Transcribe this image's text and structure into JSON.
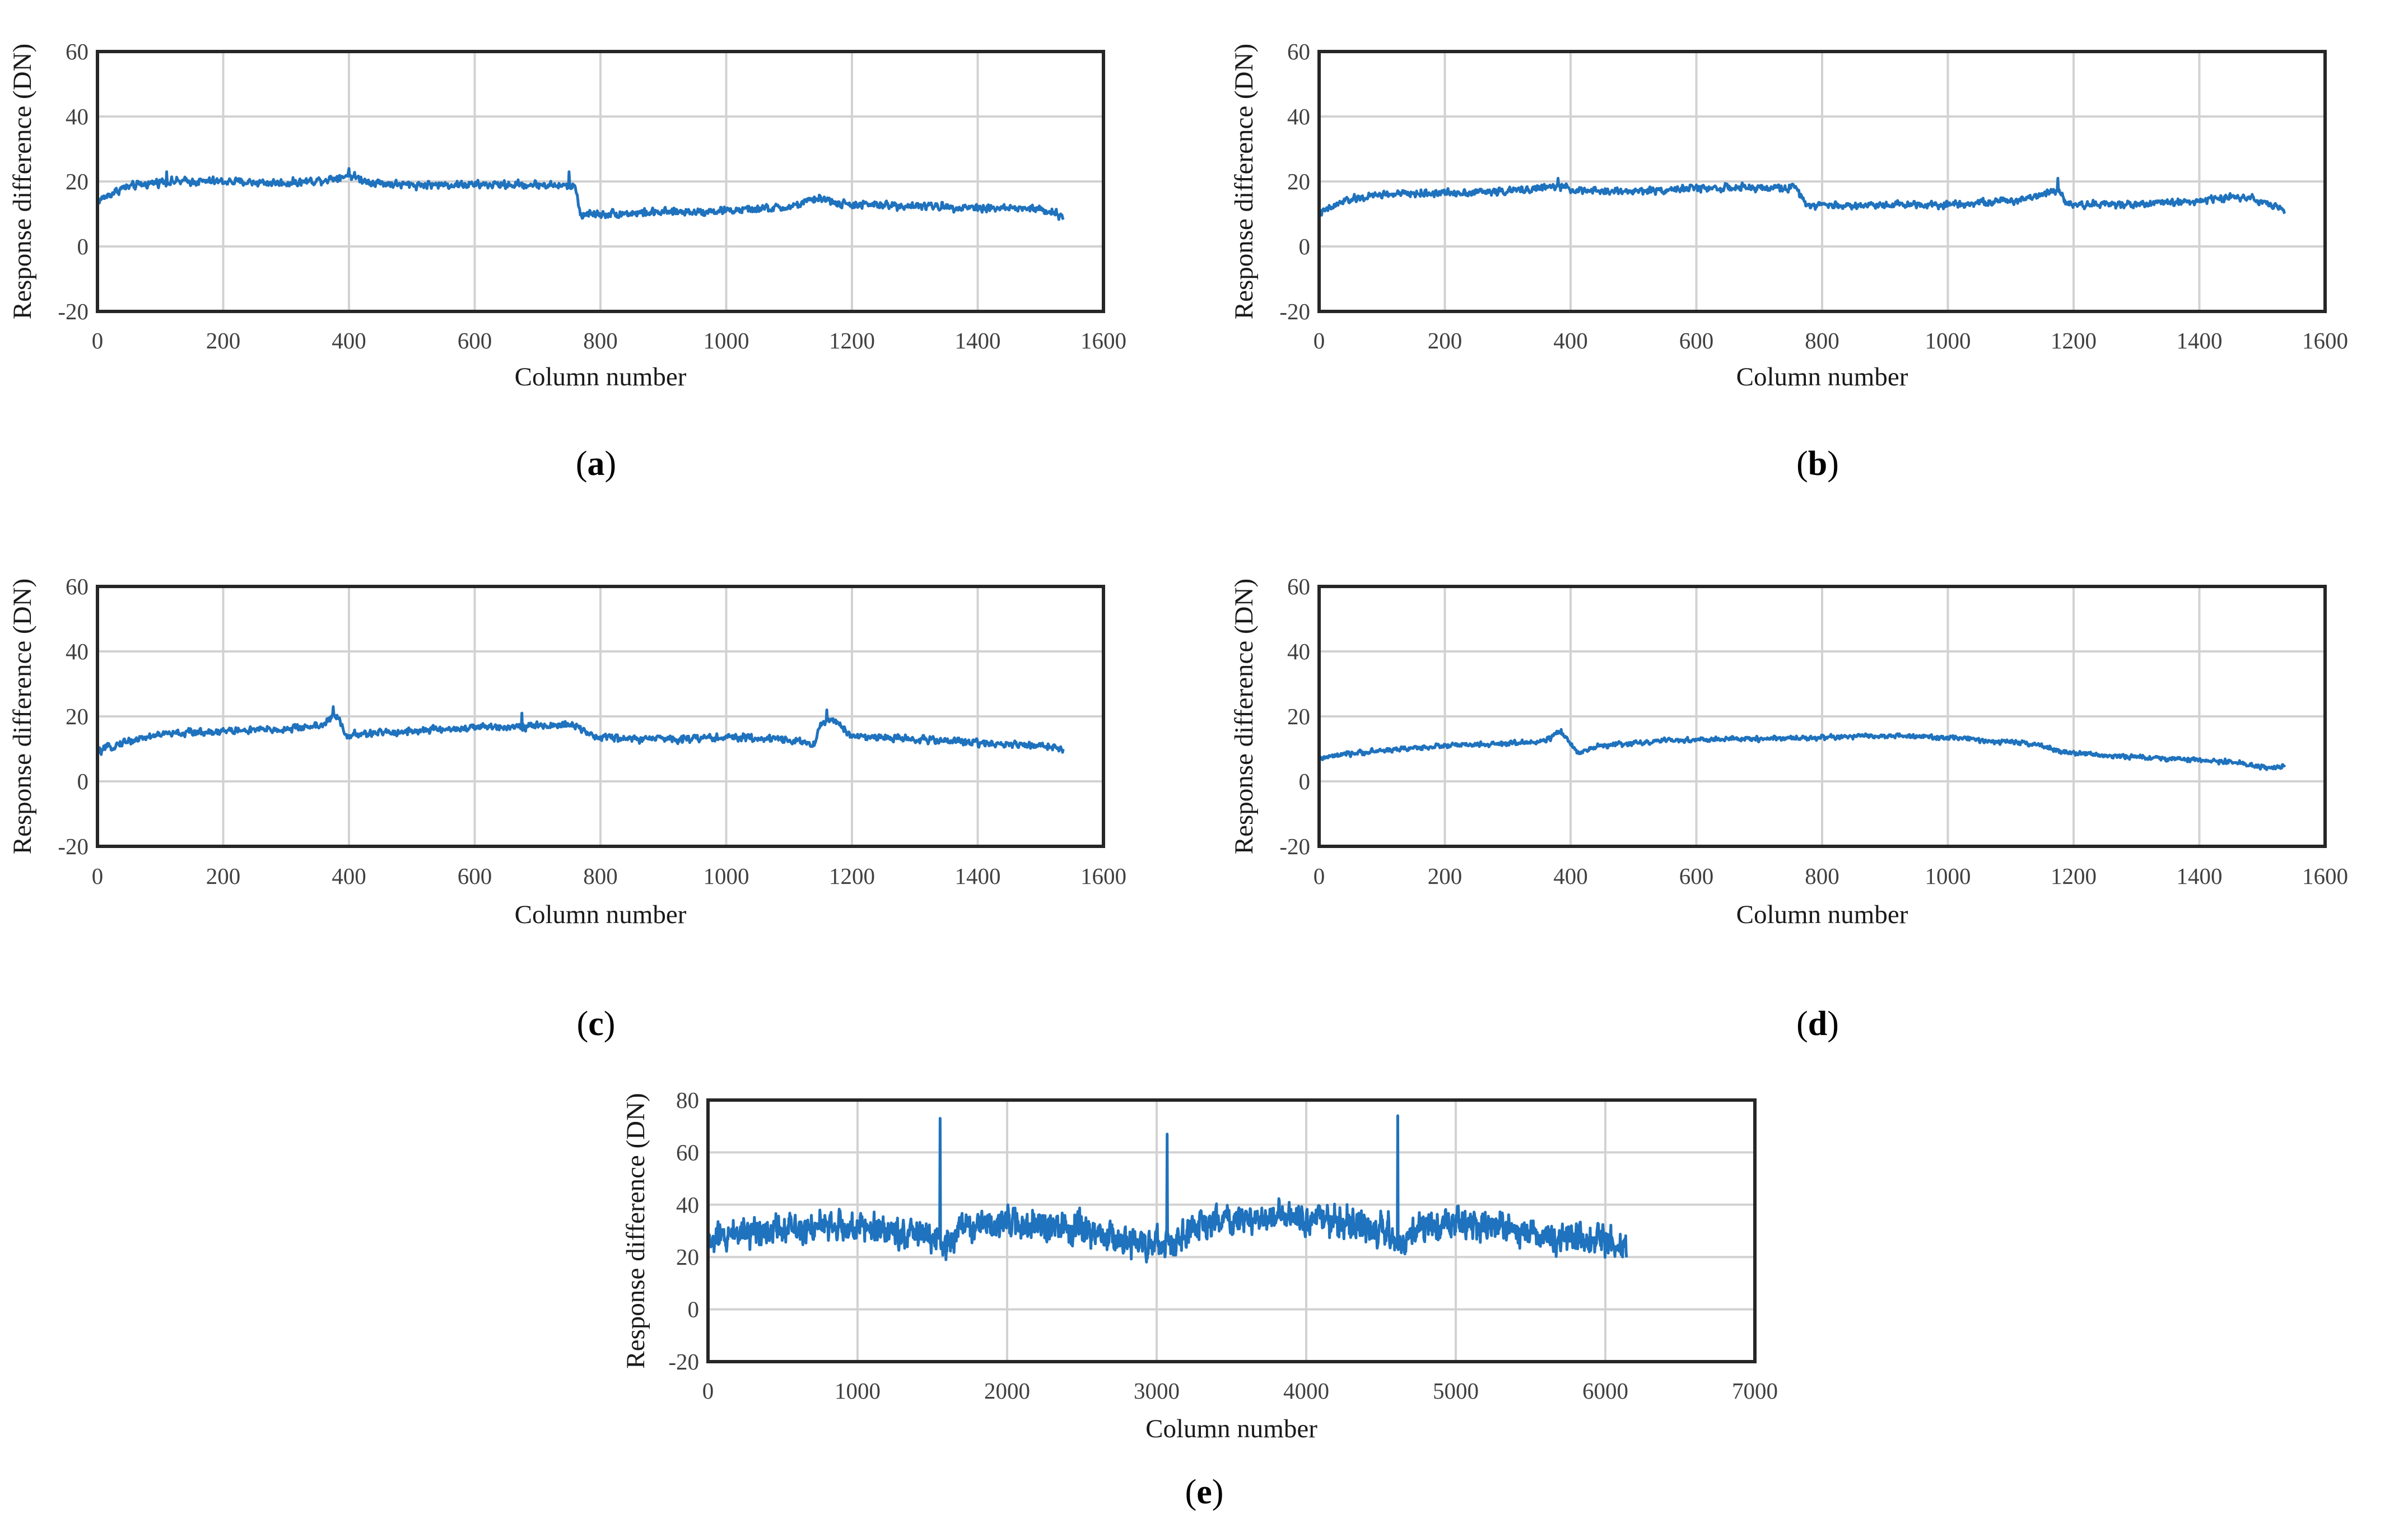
{
  "figure": "Response difference vs column number, five panels",
  "chart_data": [
    {
      "panel": "a",
      "type": "line",
      "caption_open": "(",
      "caption_letter": "a",
      "caption_close": ")",
      "xlabel": "Column number",
      "ylabel": "Response difference (DN)",
      "xlim": [
        0,
        1600
      ],
      "ylim": [
        -20,
        60
      ],
      "xticks": [
        0,
        200,
        400,
        600,
        800,
        1000,
        1200,
        1400,
        1600
      ],
      "yticks": [
        -20,
        0,
        20,
        40,
        60
      ],
      "grid": true,
      "x_range": [
        1,
        1536
      ],
      "noise_amplitude": 2.6,
      "profile": [
        [
          0,
          14
        ],
        [
          40,
          18
        ],
        [
          100,
          20
        ],
        [
          200,
          20
        ],
        [
          300,
          19.5
        ],
        [
          360,
          20.5
        ],
        [
          400,
          22
        ],
        [
          430,
          20
        ],
        [
          480,
          19
        ],
        [
          600,
          19
        ],
        [
          700,
          19
        ],
        [
          760,
          18.5
        ],
        [
          768,
          10
        ],
        [
          800,
          10
        ],
        [
          900,
          10.5
        ],
        [
          1000,
          11
        ],
        [
          1100,
          12
        ],
        [
          1150,
          15
        ],
        [
          1180,
          13
        ],
        [
          1300,
          12.5
        ],
        [
          1400,
          12
        ],
        [
          1500,
          11.5
        ],
        [
          1536,
          9
        ]
      ],
      "spikes": [
        [
          110,
          23
        ],
        [
          400,
          24
        ],
        [
          750,
          23
        ]
      ]
    },
    {
      "panel": "b",
      "type": "line",
      "caption_open": "(",
      "caption_letter": "b",
      "caption_close": ")",
      "xlabel": "Column number",
      "ylabel": "Response difference (DN)",
      "xlim": [
        0,
        1600
      ],
      "ylim": [
        -20,
        60
      ],
      "xticks": [
        0,
        200,
        400,
        600,
        800,
        1000,
        1200,
        1400,
        1600
      ],
      "yticks": [
        -20,
        0,
        20,
        40,
        60
      ],
      "grid": true,
      "x_range": [
        1,
        1536
      ],
      "noise_amplitude": 2.4,
      "profile": [
        [
          0,
          10
        ],
        [
          40,
          14
        ],
        [
          100,
          16
        ],
        [
          200,
          16.5
        ],
        [
          300,
          17
        ],
        [
          380,
          18.5
        ],
        [
          420,
          17
        ],
        [
          500,
          17
        ],
        [
          600,
          18
        ],
        [
          700,
          18
        ],
        [
          760,
          18
        ],
        [
          775,
          13
        ],
        [
          850,
          12.5
        ],
        [
          900,
          13
        ],
        [
          1000,
          13
        ],
        [
          1100,
          14
        ],
        [
          1150,
          16
        ],
        [
          1175,
          18
        ],
        [
          1190,
          13
        ],
        [
          1300,
          13
        ],
        [
          1400,
          14
        ],
        [
          1470,
          15.5
        ],
        [
          1500,
          14
        ],
        [
          1536,
          11
        ]
      ],
      "spikes": [
        [
          380,
          21
        ],
        [
          1175,
          21
        ]
      ]
    },
    {
      "panel": "c",
      "type": "line",
      "caption_open": "(",
      "caption_letter": "c",
      "caption_close": ")",
      "xlabel": "Column number",
      "ylabel": "Response difference (DN)",
      "xlim": [
        0,
        1600
      ],
      "ylim": [
        -20,
        60
      ],
      "xticks": [
        0,
        200,
        400,
        600,
        800,
        1000,
        1200,
        1400,
        1600
      ],
      "yticks": [
        -20,
        0,
        20,
        40,
        60
      ],
      "grid": true,
      "x_range": [
        1,
        1536
      ],
      "noise_amplitude": 2.4,
      "profile": [
        [
          0,
          9
        ],
        [
          40,
          12
        ],
        [
          100,
          14.5
        ],
        [
          200,
          15.5
        ],
        [
          300,
          16
        ],
        [
          360,
          17.5
        ],
        [
          375,
          20
        ],
        [
          385,
          19
        ],
        [
          395,
          14
        ],
        [
          450,
          15
        ],
        [
          550,
          16
        ],
        [
          650,
          17
        ],
        [
          700,
          17
        ],
        [
          760,
          17.5
        ],
        [
          780,
          14
        ],
        [
          850,
          13
        ],
        [
          1000,
          13.5
        ],
        [
          1100,
          13
        ],
        [
          1140,
          11
        ],
        [
          1150,
          18
        ],
        [
          1170,
          19
        ],
        [
          1200,
          14
        ],
        [
          1300,
          13
        ],
        [
          1400,
          12
        ],
        [
          1500,
          11
        ],
        [
          1536,
          10
        ]
      ],
      "spikes": [
        [
          375,
          23
        ],
        [
          675,
          21
        ],
        [
          1160,
          22
        ]
      ]
    },
    {
      "panel": "d",
      "type": "line",
      "caption_open": "(",
      "caption_letter": "d",
      "caption_close": ")",
      "xlabel": "Column number",
      "ylabel": "Response difference (DN)",
      "xlim": [
        0,
        1600
      ],
      "ylim": [
        -20,
        60
      ],
      "xticks": [
        0,
        200,
        400,
        600,
        800,
        1000,
        1200,
        1400,
        1600
      ],
      "yticks": [
        -20,
        0,
        20,
        40,
        60
      ],
      "grid": true,
      "x_range": [
        1,
        1536
      ],
      "noise_amplitude": 1.6,
      "profile": [
        [
          0,
          7
        ],
        [
          50,
          8.5
        ],
        [
          100,
          9.5
        ],
        [
          200,
          11
        ],
        [
          300,
          11.5
        ],
        [
          360,
          12.5
        ],
        [
          380,
          15
        ],
        [
          390,
          14
        ],
        [
          410,
          9
        ],
        [
          450,
          11
        ],
        [
          550,
          12.5
        ],
        [
          650,
          13
        ],
        [
          800,
          13.5
        ],
        [
          900,
          14
        ],
        [
          1000,
          13.5
        ],
        [
          1100,
          12
        ],
        [
          1150,
          11
        ],
        [
          1180,
          9
        ],
        [
          1250,
          8
        ],
        [
          1350,
          7
        ],
        [
          1450,
          6
        ],
        [
          1520,
          4
        ],
        [
          1536,
          5
        ]
      ],
      "spikes": [
        [
          385,
          16
        ]
      ]
    },
    {
      "panel": "e",
      "type": "line",
      "caption_open": "(",
      "caption_letter": "e",
      "caption_close": ")",
      "xlabel": "Column number",
      "ylabel": "Response difference (DN)",
      "xlim": [
        0,
        7000
      ],
      "ylim": [
        -20,
        80
      ],
      "xticks": [
        0,
        1000,
        2000,
        3000,
        4000,
        5000,
        6000,
        7000
      ],
      "yticks": [
        -20,
        0,
        20,
        40,
        60,
        80
      ],
      "grid": true,
      "x_range": [
        1,
        6144
      ],
      "noise_amplitude": 12,
      "profile": [
        [
          0,
          25
        ],
        [
          200,
          30
        ],
        [
          600,
          32
        ],
        [
          1000,
          31
        ],
        [
          1400,
          29
        ],
        [
          1530,
          27
        ],
        [
          1560,
          22
        ],
        [
          1700,
          32
        ],
        [
          2000,
          33
        ],
        [
          2400,
          31
        ],
        [
          2800,
          26
        ],
        [
          3000,
          24
        ],
        [
          3100,
          25
        ],
        [
          3300,
          33
        ],
        [
          3600,
          35
        ],
        [
          4000,
          35
        ],
        [
          4300,
          33
        ],
        [
          4550,
          29
        ],
        [
          4620,
          22
        ],
        [
          4700,
          30
        ],
        [
          5000,
          33
        ],
        [
          5300,
          32
        ],
        [
          5500,
          29
        ],
        [
          6000,
          27
        ],
        [
          6144,
          23
        ]
      ],
      "spikes": [
        [
          1550,
          73
        ],
        [
          3070,
          67
        ],
        [
          4610,
          74
        ]
      ]
    }
  ]
}
